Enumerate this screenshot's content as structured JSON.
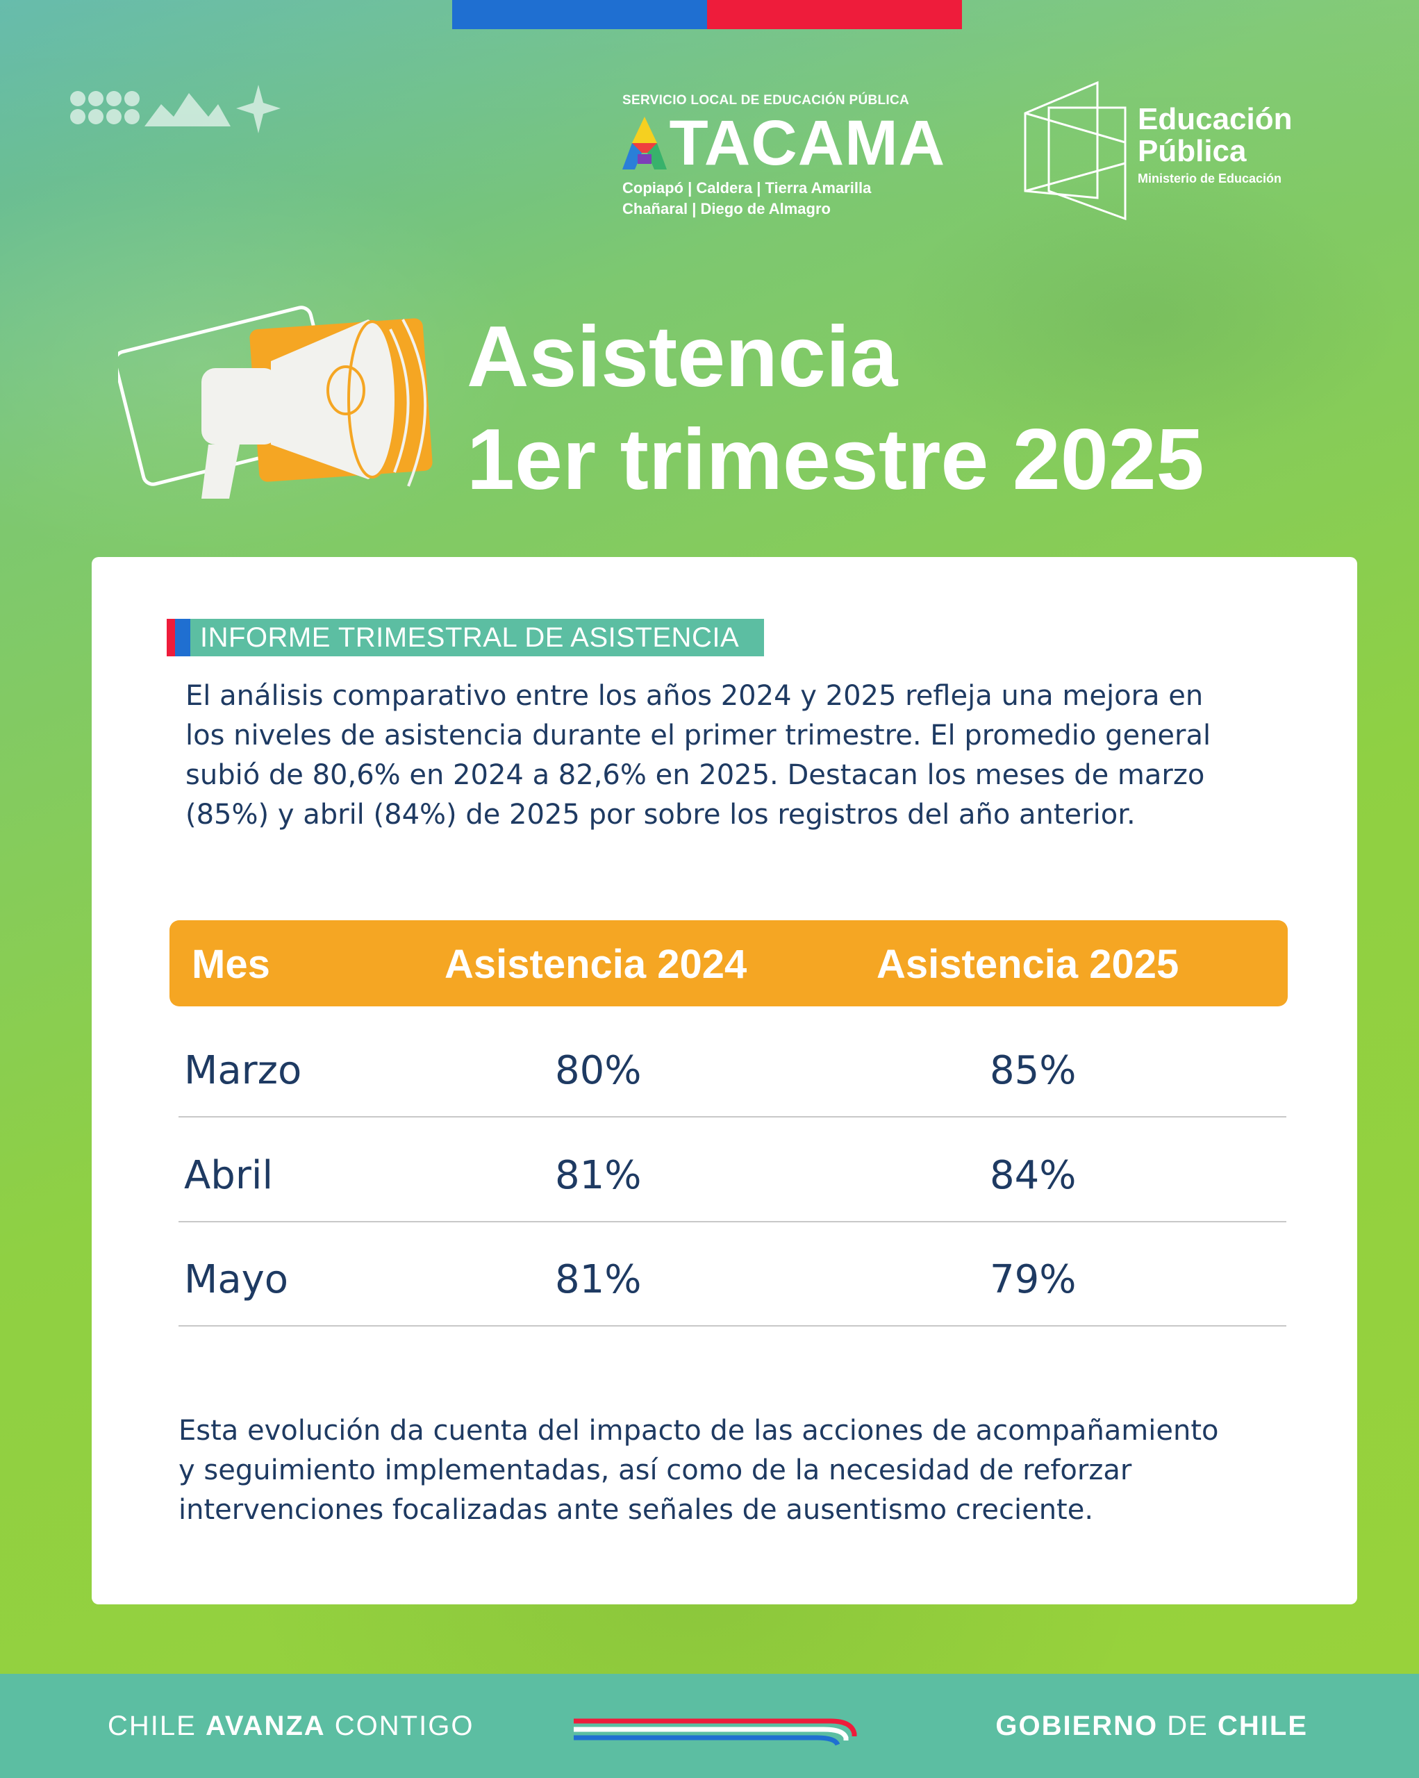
{
  "header": {
    "flag_colors": {
      "blue": "#1f6fd1",
      "red": "#ee1c3b"
    },
    "service_label": "SERVICIO LOCAL DE EDUCACIÓN PÚBLICA",
    "atacama_first_letter": "A",
    "atacama_rest": "TACAMA",
    "communes_line1": "Copiapó | Caldera | Tierra Amarilla",
    "communes_line2": "Chañaral | Diego de Almagro",
    "edu_line1": "Educación",
    "edu_line2": "Pública",
    "edu_line3": "Ministerio de Educación"
  },
  "title": {
    "line1": "Asistencia",
    "line2": "1er trimestre 2025",
    "icon": "megaphone-icon"
  },
  "card": {
    "section_label": "INFORME TRIMESTRAL DE ASISTENCIA",
    "intro_line1": "El análisis comparativo entre los años 2024 y 2025 refleja una mejora en",
    "intro_line2": "los niveles de asistencia durante el primer trimestre. El promedio general",
    "intro_line3": "subió de 80,6% en 2024 a 82,6% en 2025. Destacan los meses de marzo",
    "intro_line4": "(85%) y abril (84%) de 2025 por sobre los registros del año anterior.",
    "table": {
      "headers": [
        "Mes",
        "Asistencia 2024",
        "Asistencia 2025"
      ],
      "rows": [
        [
          "Marzo",
          "80%",
          "85%"
        ],
        [
          "Abril",
          "81%",
          "84%"
        ],
        [
          "Mayo",
          "81%",
          "79%"
        ]
      ]
    },
    "closing_line1": "Esta evolución da cuenta del impacto de las acciones de acompañamiento",
    "closing_line2": "y seguimiento implementadas, así como de la necesidad de reforzar",
    "closing_line3": "intervenciones focalizadas ante señales de ausentismo creciente."
  },
  "footer": {
    "left_a": "CHILE",
    "left_b": "AVANZA",
    "left_c": "CONTIGO",
    "right_a": "GOBIERNO",
    "right_b": "DE",
    "right_c": "CHILE"
  },
  "colors": {
    "accent_orange": "#f5a623",
    "teal": "#5cbea2",
    "text_navy": "#1e3a62"
  }
}
